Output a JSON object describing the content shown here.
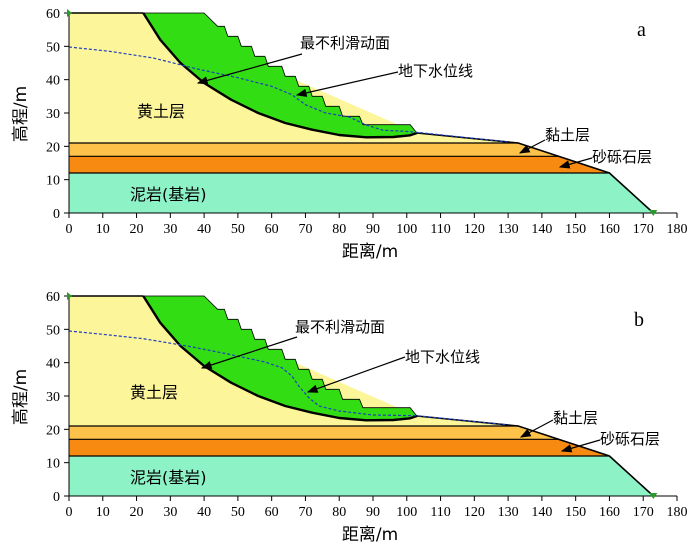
{
  "x_axis": {
    "label": "距离/m",
    "ticks": [
      0,
      10,
      20,
      30,
      40,
      50,
      60,
      70,
      80,
      90,
      100,
      110,
      120,
      130,
      140,
      150,
      160,
      170,
      180
    ],
    "range": [
      0,
      180
    ]
  },
  "y_axis": {
    "label": "高程/m",
    "ticks": [
      0,
      10,
      20,
      30,
      40,
      50,
      60
    ],
    "range": [
      0,
      60
    ]
  },
  "colors": {
    "loess": "#fdf59a",
    "slide": "#33dd14",
    "clay": "#fdc24a",
    "gravel": "#f78b12",
    "mudstone": "#8df2c6",
    "water": "#1f3fbf",
    "outline": "#000000"
  },
  "panels": [
    {
      "letter": "a",
      "labels": {
        "loess": "黄土层",
        "clay": "黏土层",
        "gravel": "砂砾石层",
        "mudstone": "泥岩(基岩)",
        "slip_surface": "最不利滑动面",
        "water_table": "地下水位线"
      },
      "slip_surface": [
        [
          22,
          60
        ],
        [
          27,
          52
        ],
        [
          33,
          45
        ],
        [
          40,
          39
        ],
        [
          48,
          34
        ],
        [
          56,
          30
        ],
        [
          64,
          27
        ],
        [
          72,
          25
        ],
        [
          80,
          23.4
        ],
        [
          88,
          22.7
        ],
        [
          96,
          22.8
        ],
        [
          101,
          23.3
        ],
        [
          103,
          24
        ]
      ],
      "slide_top": [
        [
          22,
          60
        ],
        [
          40,
          60
        ],
        [
          44,
          56
        ],
        [
          46,
          56
        ],
        [
          47,
          53
        ],
        [
          50,
          53
        ],
        [
          51,
          50
        ],
        [
          54,
          50
        ],
        [
          55,
          47
        ],
        [
          58,
          47
        ],
        [
          59,
          44
        ],
        [
          63,
          44
        ],
        [
          64,
          41
        ],
        [
          67,
          41
        ],
        [
          68,
          38
        ],
        [
          71,
          38
        ],
        [
          72,
          35
        ],
        [
          75,
          35
        ],
        [
          76,
          32
        ],
        [
          80,
          32
        ],
        [
          81,
          29
        ],
        [
          86,
          29
        ],
        [
          87,
          26.5
        ],
        [
          101,
          26.5
        ],
        [
          103,
          24
        ]
      ],
      "water_table": [
        [
          0,
          49.8
        ],
        [
          12,
          48.5
        ],
        [
          25,
          46.5
        ],
        [
          38,
          43.2
        ],
        [
          50,
          40.6
        ],
        [
          60,
          38
        ],
        [
          66,
          35.5
        ],
        [
          70,
          32.5
        ],
        [
          76,
          30
        ],
        [
          83,
          28.8
        ],
        [
          88,
          26.4
        ],
        [
          93,
          24.8
        ],
        [
          98,
          24.6
        ],
        [
          103,
          24.2
        ],
        [
          130,
          21.3
        ]
      ]
    },
    {
      "letter": "b",
      "labels": {
        "loess": "黄土层",
        "clay": "黏土层",
        "gravel": "砂砾石层",
        "mudstone": "泥岩(基岩)",
        "slip_surface": "最不利滑动面",
        "water_table": "地下水位线"
      },
      "slip_surface": [
        [
          22,
          60
        ],
        [
          27,
          52
        ],
        [
          33,
          45
        ],
        [
          40,
          39
        ],
        [
          48,
          34
        ],
        [
          56,
          30
        ],
        [
          64,
          27
        ],
        [
          72,
          25
        ],
        [
          80,
          23.4
        ],
        [
          88,
          22.7
        ],
        [
          96,
          22.8
        ],
        [
          101,
          23.3
        ],
        [
          103,
          24
        ]
      ],
      "slide_top": [
        [
          22,
          60
        ],
        [
          40,
          60
        ],
        [
          44,
          56
        ],
        [
          46,
          56
        ],
        [
          47,
          53
        ],
        [
          50,
          53
        ],
        [
          51,
          50
        ],
        [
          54,
          50
        ],
        [
          55,
          47
        ],
        [
          58,
          47
        ],
        [
          59,
          44
        ],
        [
          63,
          44
        ],
        [
          64,
          41
        ],
        [
          67,
          41
        ],
        [
          68,
          38
        ],
        [
          71,
          38
        ],
        [
          72,
          35
        ],
        [
          75,
          35
        ],
        [
          76,
          32
        ],
        [
          80,
          32
        ],
        [
          81,
          29
        ],
        [
          86,
          29
        ],
        [
          87,
          26.5
        ],
        [
          101,
          26.5
        ],
        [
          103,
          24
        ]
      ],
      "water_table": [
        [
          0,
          49.5
        ],
        [
          10,
          48.5
        ],
        [
          22,
          47.2
        ],
        [
          35,
          45
        ],
        [
          47,
          42.6
        ],
        [
          58,
          40.2
        ],
        [
          63,
          38.5
        ],
        [
          66,
          36
        ],
        [
          68,
          33
        ],
        [
          71,
          29.5
        ],
        [
          74,
          27
        ],
        [
          80,
          25.5
        ],
        [
          90,
          24.3
        ],
        [
          103,
          24.1
        ],
        [
          130,
          21.3
        ]
      ]
    }
  ],
  "geology": {
    "surface": [
      [
        0,
        60
      ],
      [
        22,
        60
      ],
      [
        103,
        24
      ],
      [
        133,
        21
      ],
      [
        160,
        12
      ],
      [
        173,
        0
      ]
    ],
    "clay_top": [
      [
        0,
        21
      ],
      [
        133,
        21
      ]
    ],
    "gravel_top": [
      [
        0,
        17
      ],
      [
        148,
        17
      ]
    ],
    "mudstone_top": [
      [
        0,
        12
      ],
      [
        160,
        12
      ]
    ]
  }
}
